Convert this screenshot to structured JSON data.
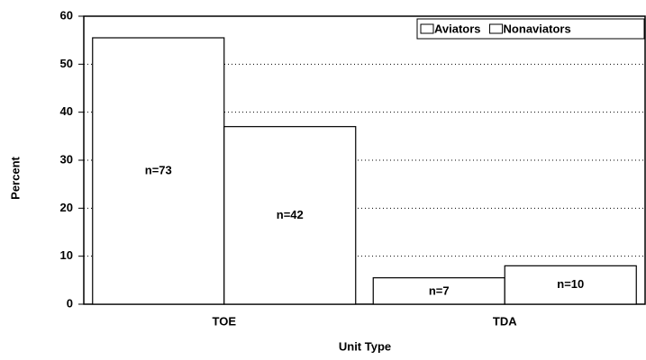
{
  "chart_data": {
    "type": "bar",
    "x_label": "Unit Type",
    "y_label": "Percent",
    "categories": [
      "TOE",
      "TDA"
    ],
    "series": [
      {
        "name": "Aviators",
        "color": "#ffffff",
        "values": [
          55.5,
          5.5
        ],
        "labels": [
          "n=73",
          "n=7"
        ]
      },
      {
        "name": "Nonaviators",
        "color": "#ffffff",
        "values": [
          37,
          8
        ],
        "labels": [
          "n=42",
          "n=10"
        ]
      }
    ],
    "ylim": [
      0,
      60
    ],
    "yticks": [
      0,
      10,
      20,
      30,
      40,
      50,
      60
    ],
    "grid": true,
    "legend": "top-right"
  }
}
